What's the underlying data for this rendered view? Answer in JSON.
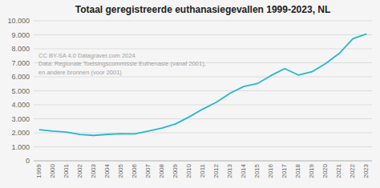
{
  "chart_data": {
    "type": "line",
    "title": "Totaal geregistreerde euthanasiegevallen 1999-2023, NL",
    "x": [
      1999,
      2000,
      2001,
      2002,
      2003,
      2004,
      2005,
      2006,
      2007,
      2008,
      2009,
      2010,
      2011,
      2012,
      2013,
      2014,
      2015,
      2016,
      2017,
      2018,
      2019,
      2020,
      2021,
      2022,
      2023
    ],
    "values": [
      2216,
      2123,
      2054,
      1882,
      1815,
      1886,
      1933,
      1923,
      2120,
      2331,
      2636,
      3136,
      3695,
      4188,
      4829,
      5306,
      5516,
      6091,
      6585,
      6126,
      6361,
      6938,
      7666,
      8720,
      9068
    ],
    "color": "#29b6d2",
    "xlim": [
      1998.6,
      2023.4
    ],
    "xticks": [
      1999,
      2000,
      2001,
      2002,
      2003,
      2004,
      2005,
      2006,
      2007,
      2008,
      2009,
      2010,
      2011,
      2012,
      2013,
      2014,
      2015,
      2016,
      2017,
      2018,
      2019,
      2020,
      2021,
      2022,
      2023
    ],
    "ylim": [
      0,
      10000
    ],
    "yticks": [
      0,
      {
        "value": 1000,
        "label": "1.000"
      },
      {
        "value": 2000,
        "label": "2.000"
      },
      {
        "value": 3000,
        "label": "3.000"
      },
      {
        "value": 4000,
        "label": "4.000"
      },
      {
        "value": 5000,
        "label": "5.000"
      },
      {
        "value": 6000,
        "label": "6.000"
      },
      {
        "value": 7000,
        "label": "7.000"
      },
      {
        "value": 8000,
        "label": "8.000"
      },
      {
        "value": 9000,
        "label": "9.000"
      },
      {
        "value": 10000,
        "label": "10.000"
      }
    ],
    "grid": true,
    "annotation": "CC BY-SA 4.0 Datagraver.com 2024\nData: Regionale Toetsingscommissie Euthenasie (vanaf 2001),\nen andere bronnen (voor 2001)"
  }
}
